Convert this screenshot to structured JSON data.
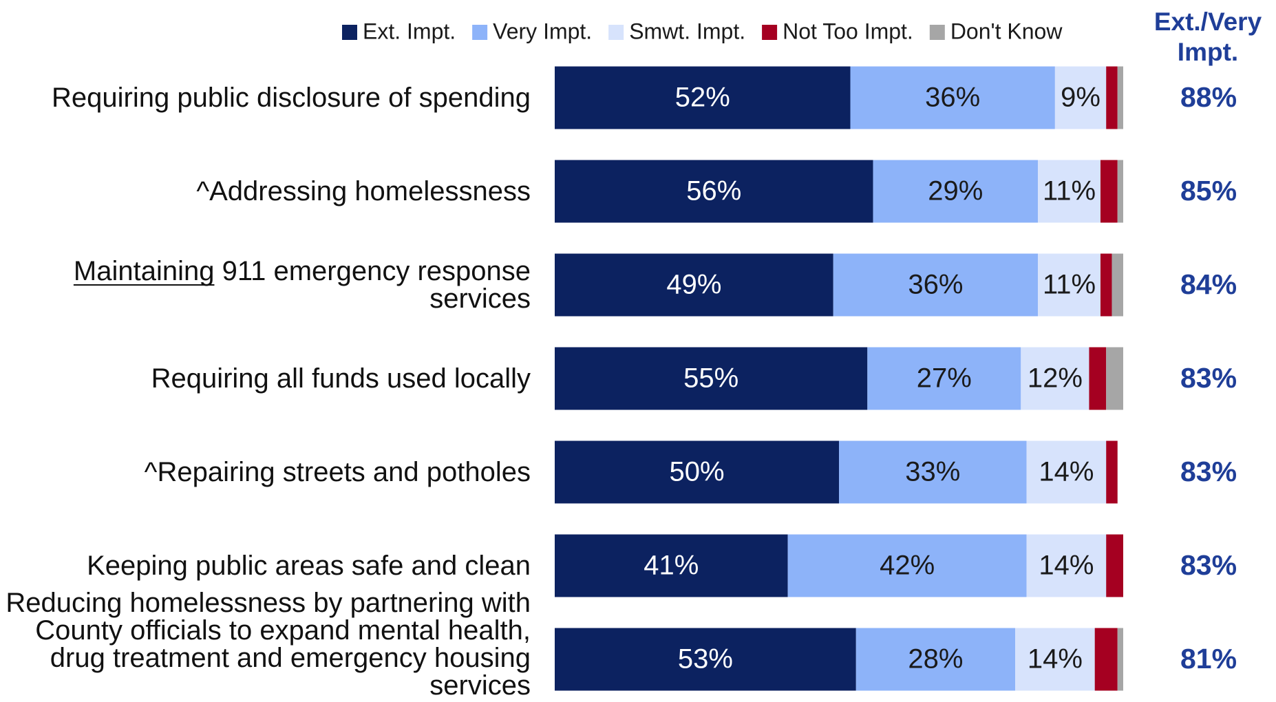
{
  "chart_data": {
    "type": "stacked_barh",
    "categories": [
      "Requiring public disclosure of spending",
      "^Addressing homelessness",
      "Maintaining 911 emergency response services",
      "Requiring all funds used locally",
      "^Repairing streets and potholes",
      "Keeping public areas safe and clean",
      "Reducing homelessness by partnering with County officials to expand mental health, drug treatment and emergency housing services"
    ],
    "xlim": [
      0,
      100
    ],
    "legend": "top",
    "series": [
      {
        "name": "Ext. Impt.",
        "color": "#0c2260",
        "values": [
          52,
          56,
          49,
          55,
          50,
          41,
          53
        ],
        "value_labels": [
          "52%",
          "56%",
          "49%",
          "55%",
          "50%",
          "41%",
          "53%"
        ]
      },
      {
        "name": "Very Impt.",
        "color": "#8db3f9",
        "values": [
          36,
          29,
          36,
          27,
          33,
          42,
          28
        ],
        "value_labels": [
          "36%",
          "29%",
          "36%",
          "27%",
          "33%",
          "42%",
          "28%"
        ]
      },
      {
        "name": "Smwt. Impt.",
        "color": "#d7e3fc",
        "values": [
          9,
          11,
          11,
          12,
          14,
          14,
          14
        ],
        "value_labels": [
          "9%",
          "11%",
          "11%",
          "12%",
          "14%",
          "14%",
          "14%"
        ]
      },
      {
        "name": "Not Too Impt.",
        "color": "#a50021",
        "values": [
          2,
          3,
          2,
          3,
          2,
          3,
          4
        ]
      },
      {
        "name": "Don't Know",
        "color": "#a6a6a6",
        "values": [
          1,
          1,
          2,
          3,
          0,
          0,
          1
        ]
      }
    ],
    "net_title": "Ext./Very Impt.",
    "net_labels": [
      "88%",
      "85%",
      "84%",
      "83%",
      "83%",
      "83%",
      "81%"
    ]
  }
}
